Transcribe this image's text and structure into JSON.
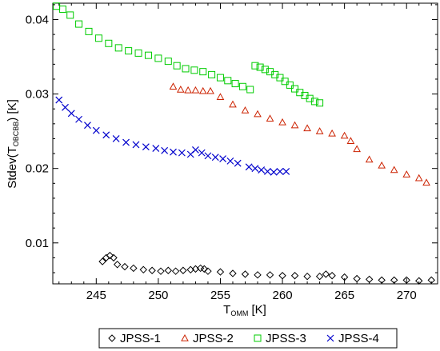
{
  "chart_data": {
    "type": "scatter",
    "title": "",
    "xlabel": {
      "main": "T",
      "sub": "OMM",
      "unit": " [K]"
    },
    "ylabel": {
      "prefix": "Stdev(T",
      "sub": "OBCBB",
      "suffix": ") [K]"
    },
    "xlim": [
      241.5,
      272.5
    ],
    "ylim": [
      0.0045,
      0.0422
    ],
    "xticks": [
      245,
      250,
      255,
      260,
      265,
      270
    ],
    "yticks": [
      0.01,
      0.02,
      0.03,
      0.04
    ],
    "ytick_labels": [
      "0.01",
      "0.02",
      "0.03",
      "0.04"
    ],
    "grid": false,
    "legend_position": "bottom-outside",
    "series": [
      {
        "name": "JPSS-1",
        "marker": "diamond",
        "color": "#000000",
        "x": [
          245.5,
          245.8,
          246.1,
          246.4,
          246.7,
          247.3,
          248.0,
          248.8,
          249.5,
          250.2,
          250.8,
          251.4,
          252.0,
          252.6,
          253.0,
          253.4,
          253.7,
          254.0,
          255.0,
          256.0,
          257.0,
          258.0,
          259.0,
          260.0,
          261.0,
          262.0,
          263.0,
          263.5,
          264.0,
          265.0,
          266.0,
          267.0,
          268.0,
          269.0,
          270.0,
          271.0,
          272.0
        ],
        "y": [
          0.0075,
          0.008,
          0.0083,
          0.008,
          0.0071,
          0.0068,
          0.0066,
          0.0064,
          0.0063,
          0.0062,
          0.0063,
          0.0062,
          0.0063,
          0.0064,
          0.0065,
          0.0066,
          0.0065,
          0.0062,
          0.0061,
          0.0059,
          0.0058,
          0.0057,
          0.0057,
          0.0056,
          0.0056,
          0.0055,
          0.0055,
          0.0058,
          0.0056,
          0.0054,
          0.0052,
          0.0051,
          0.005,
          0.005,
          0.005,
          0.0049,
          0.005
        ]
      },
      {
        "name": "JPSS-2",
        "marker": "triangle",
        "color": "#cc2200",
        "x": [
          251.2,
          251.8,
          252.4,
          253.0,
          253.6,
          254.2,
          255.0,
          256.0,
          257.0,
          258.0,
          259.0,
          260.0,
          261.0,
          262.0,
          263.0,
          264.0,
          265.0,
          265.5,
          266.0,
          267.0,
          268.0,
          269.0,
          270.0,
          271.0,
          271.6
        ],
        "y": [
          0.031,
          0.0306,
          0.0305,
          0.0305,
          0.0304,
          0.0304,
          0.0296,
          0.0286,
          0.0278,
          0.0273,
          0.0267,
          0.0262,
          0.0258,
          0.0254,
          0.025,
          0.0247,
          0.0244,
          0.0237,
          0.0226,
          0.0212,
          0.0204,
          0.0198,
          0.0192,
          0.0187,
          0.0181
        ]
      },
      {
        "name": "JPSS-3",
        "marker": "square",
        "color": "#00cc00",
        "x": [
          241.8,
          242.3,
          242.9,
          243.6,
          244.4,
          245.2,
          246.0,
          246.8,
          247.6,
          248.4,
          249.2,
          250.0,
          250.8,
          251.5,
          252.2,
          252.9,
          253.6,
          254.3,
          255.0,
          255.6,
          256.2,
          256.8,
          257.4,
          257.8,
          258.2,
          258.6,
          259.0,
          259.4,
          259.8,
          260.2,
          260.6,
          261.0,
          261.4,
          261.8,
          262.2,
          262.6,
          263.0
        ],
        "y": [
          0.0418,
          0.0414,
          0.0406,
          0.0394,
          0.0384,
          0.0375,
          0.0368,
          0.0362,
          0.0358,
          0.0355,
          0.0352,
          0.0348,
          0.0344,
          0.0338,
          0.0334,
          0.0332,
          0.033,
          0.0326,
          0.0322,
          0.0318,
          0.0314,
          0.031,
          0.0306,
          0.0338,
          0.0336,
          0.0333,
          0.033,
          0.0326,
          0.0322,
          0.0317,
          0.0312,
          0.0307,
          0.0302,
          0.0298,
          0.0294,
          0.029,
          0.0288
        ]
      },
      {
        "name": "JPSS-4",
        "marker": "x",
        "color": "#0000cc",
        "x": [
          242.0,
          242.5,
          243.0,
          243.6,
          244.3,
          245.0,
          245.8,
          246.6,
          247.4,
          248.2,
          249.0,
          249.8,
          250.5,
          251.2,
          251.9,
          252.6,
          253.0,
          253.5,
          254.0,
          254.6,
          255.2,
          255.8,
          256.4,
          257.3,
          257.8,
          258.3,
          258.8,
          259.3,
          259.8,
          260.3
        ],
        "y": [
          0.0292,
          0.0282,
          0.0274,
          0.0266,
          0.0258,
          0.0251,
          0.0245,
          0.024,
          0.0235,
          0.0232,
          0.0229,
          0.0227,
          0.0224,
          0.0222,
          0.0221,
          0.0219,
          0.0225,
          0.0221,
          0.0217,
          0.0215,
          0.0213,
          0.021,
          0.0207,
          0.0202,
          0.02,
          0.0198,
          0.0196,
          0.0195,
          0.0196,
          0.0196
        ]
      }
    ]
  }
}
